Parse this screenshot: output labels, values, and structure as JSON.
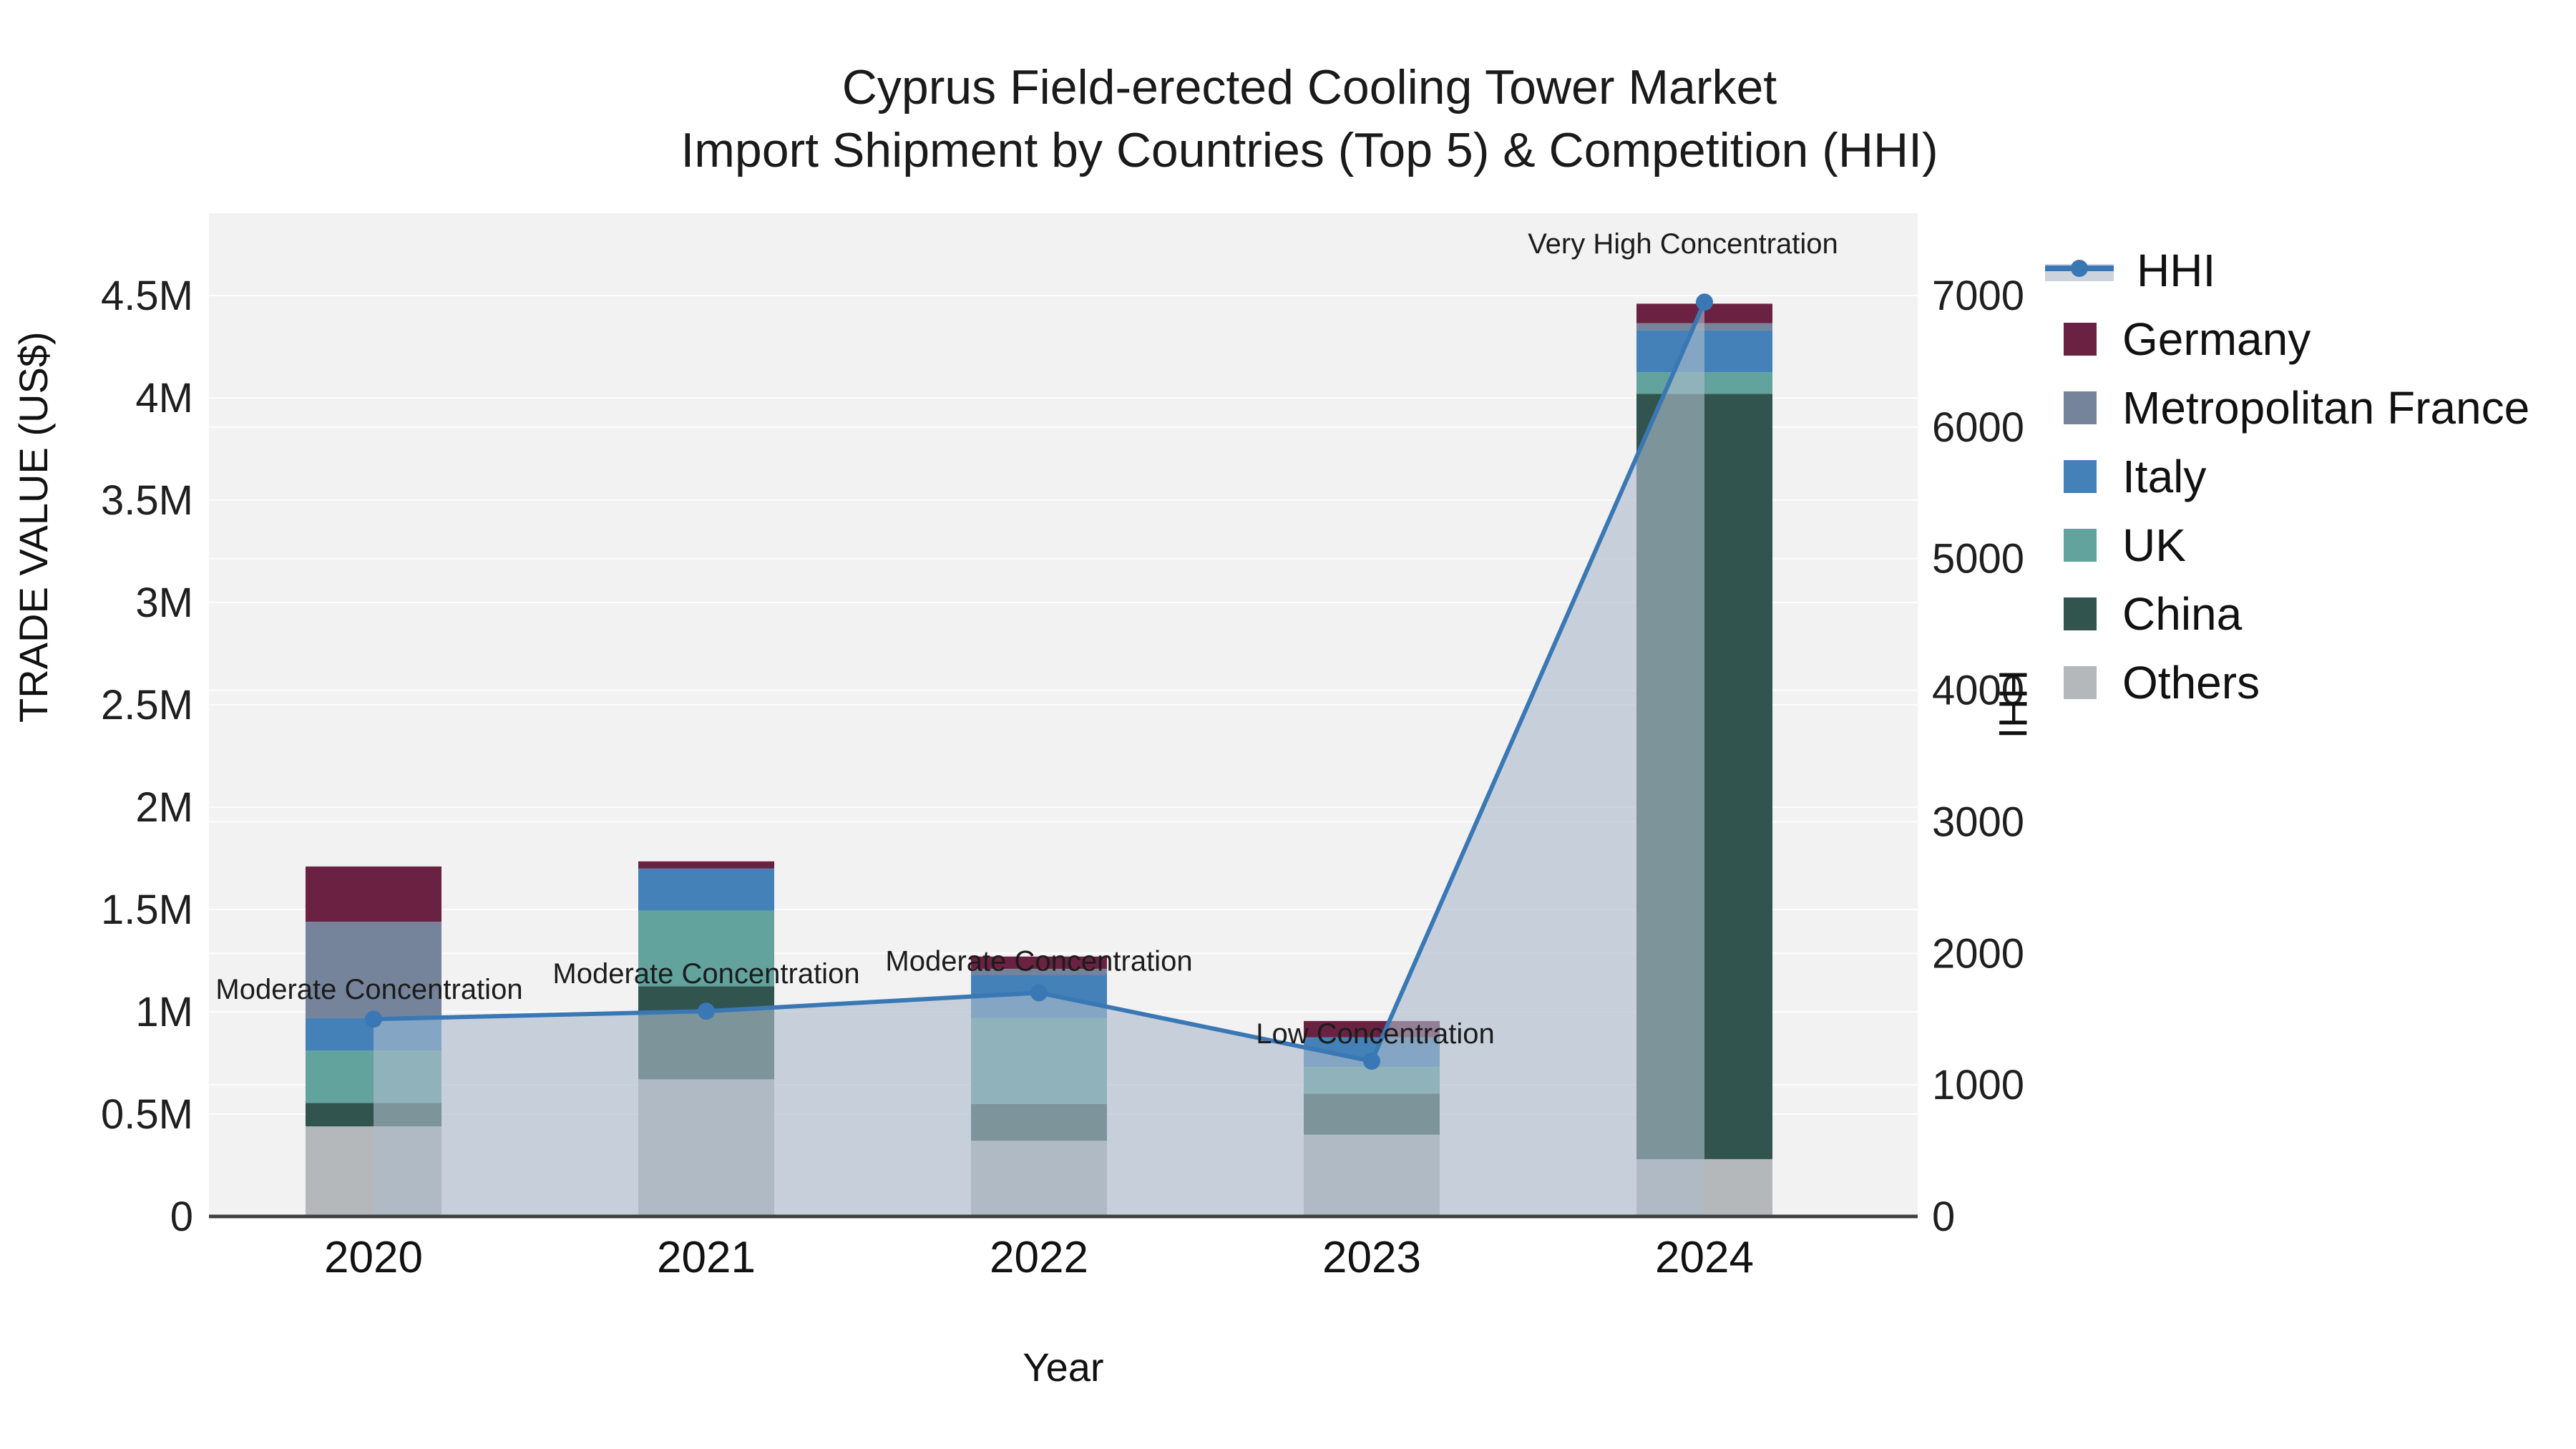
{
  "title": {
    "line1": "Cyprus Field-erected Cooling Tower Market",
    "line2": "Import Shipment by Countries (Top 5) & Competition (HHI)"
  },
  "axes": {
    "x_title": "Year",
    "y_left_title": "TRADE VALUE (US$)",
    "y_right_title": "HHI",
    "y_left_tick_labels": [
      "0",
      "0.5M",
      "1M",
      "1.5M",
      "2M",
      "2.5M",
      "3M",
      "3.5M",
      "4M",
      "4.5M"
    ],
    "y_left_tick_values": [
      0,
      500000,
      1000000,
      1500000,
      2000000,
      2500000,
      3000000,
      3500000,
      4000000,
      4500000
    ],
    "y_right_tick_labels": [
      "0",
      "1000",
      "2000",
      "3000",
      "4000",
      "5000",
      "6000",
      "7000"
    ],
    "y_right_tick_values": [
      0,
      1000,
      2000,
      3000,
      4000,
      5000,
      6000,
      7000
    ]
  },
  "legend": {
    "items": [
      {
        "label": "HHI",
        "type": "line",
        "color": "#3a78b5"
      },
      {
        "label": "Germany",
        "type": "swatch",
        "color": "#6b2142"
      },
      {
        "label": "Metropolitan France",
        "type": "swatch",
        "color": "#76849b"
      },
      {
        "label": "Italy",
        "type": "swatch",
        "color": "#4381b8"
      },
      {
        "label": "UK",
        "type": "swatch",
        "color": "#62a39d"
      },
      {
        "label": "China",
        "type": "swatch",
        "color": "#31544e"
      },
      {
        "label": "Others",
        "type": "swatch",
        "color": "#b4b8ba"
      }
    ]
  },
  "annotations": [
    {
      "text": "Moderate Concentration",
      "year": "2020"
    },
    {
      "text": "Moderate Concentration",
      "year": "2021"
    },
    {
      "text": "Moderate Concentration",
      "year": "2022"
    },
    {
      "text": "Low Concentration",
      "year": "2023"
    },
    {
      "text": "Very High Concentration",
      "year": "2024"
    }
  ],
  "chart_data": {
    "type": "stacked-bar+line",
    "categories": [
      "2020",
      "2021",
      "2022",
      "2023",
      "2024"
    ],
    "stack_order_bottom_to_top": [
      "Others",
      "China",
      "UK",
      "Italy",
      "Metropolitan France",
      "Germany"
    ],
    "series": [
      {
        "name": "Germany",
        "color": "#6b2142",
        "values": [
          270000,
          35000,
          60000,
          80000,
          95000
        ]
      },
      {
        "name": "Metropolitan France",
        "color": "#76849b",
        "values": [
          470000,
          0,
          30000,
          0,
          35000
        ]
      },
      {
        "name": "Italy",
        "color": "#4381b8",
        "values": [
          160000,
          205000,
          210000,
          145000,
          205000
        ]
      },
      {
        "name": "UK",
        "color": "#62a39d",
        "values": [
          255000,
          370000,
          420000,
          130000,
          105000
        ]
      },
      {
        "name": "China",
        "color": "#31544e",
        "values": [
          115000,
          455000,
          180000,
          200000,
          3740000
        ]
      },
      {
        "name": "Others",
        "color": "#b4b8ba",
        "values": [
          440000,
          670000,
          370000,
          400000,
          280000
        ]
      }
    ],
    "bar_totals": [
      1710000,
      1735000,
      1270000,
      955000,
      4460000
    ],
    "line": {
      "name": "HHI",
      "axis": "right",
      "color": "#3a78b5",
      "fill_color": "rgba(173,187,204,0.62)",
      "values": [
        1500,
        1560,
        1700,
        1180,
        6950
      ]
    },
    "xlabel": "Year",
    "ylabel_left": "TRADE VALUE (US$)",
    "ylabel_right": "HHI",
    "ylim_left": [
      0,
      4900000
    ],
    "ylim_right": [
      0,
      7620
    ],
    "grid": true,
    "legend_position": "right",
    "plot_bg": "#f2f2f2",
    "grid_color": "#ffffff",
    "axisline_color": "#3f3f3f",
    "tick_color": "#1f1f1f"
  }
}
